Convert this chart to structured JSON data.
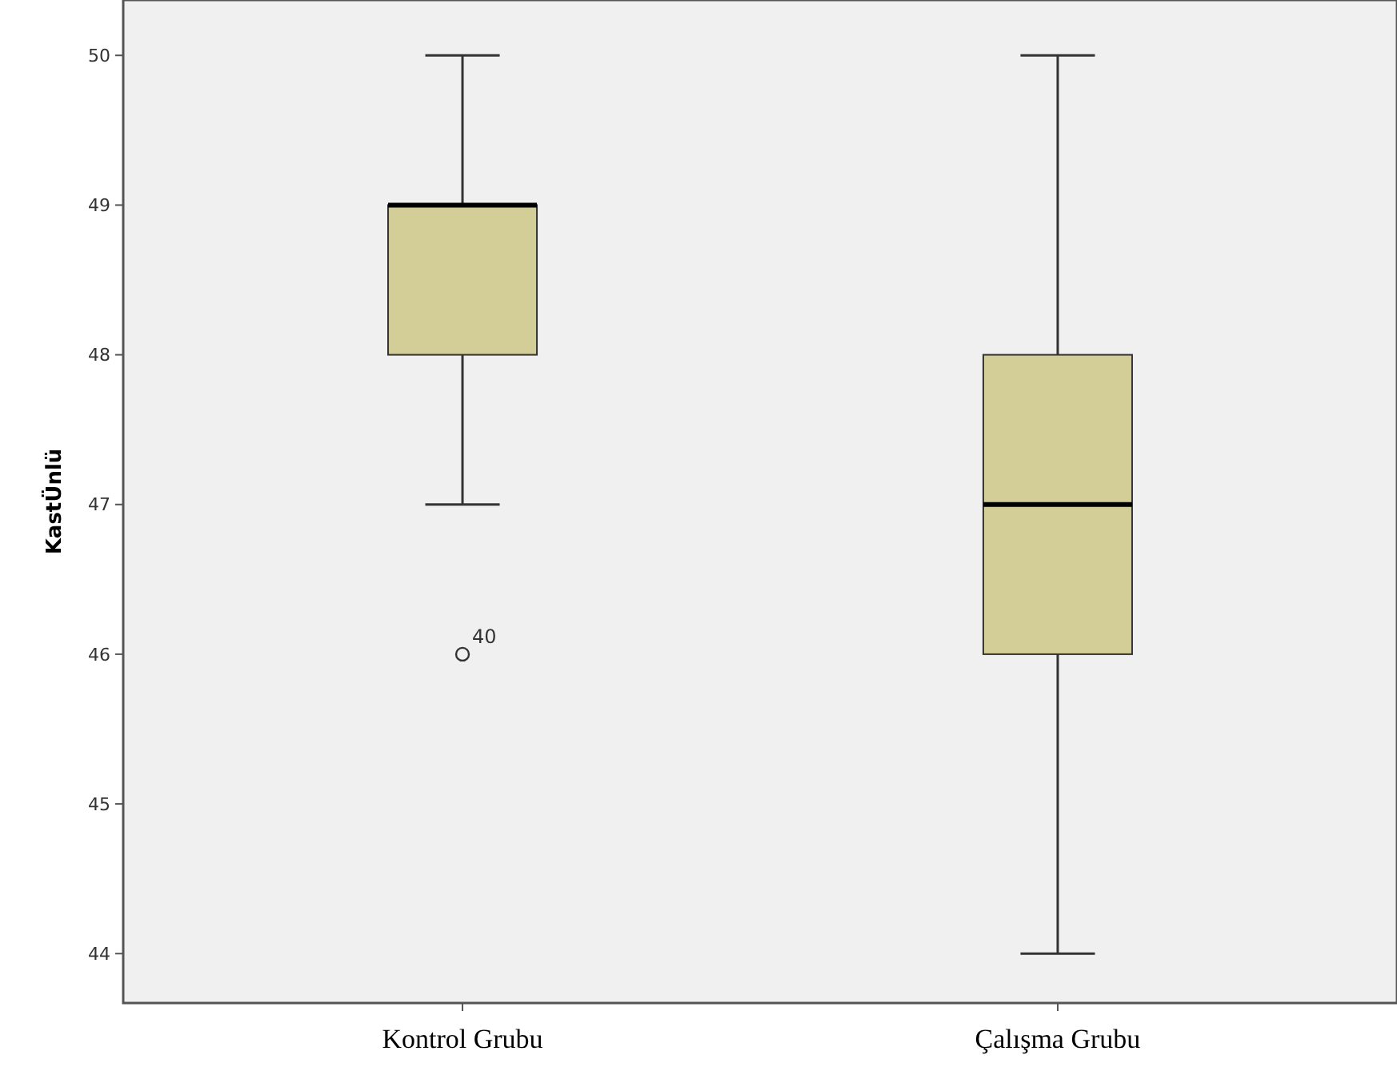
{
  "chart_data": {
    "type": "box",
    "ylabel": "KastÜnlü",
    "categories": [
      "Kontrol Grubu",
      "Çalışma Grubu"
    ],
    "boxes": [
      {
        "low": 47,
        "q1": 48,
        "median": 49,
        "q3": 49,
        "high": 50,
        "outliers": [
          46
        ]
      },
      {
        "low": 44,
        "q1": 46,
        "median": 47,
        "q3": 48,
        "high": 50
      }
    ],
    "color": "#d3ce97",
    "ylim": [
      43.67,
      50.37
    ],
    "yticks": [
      44,
      45,
      46,
      47,
      48,
      49,
      50
    ],
    "annotations": [
      "40"
    ]
  }
}
